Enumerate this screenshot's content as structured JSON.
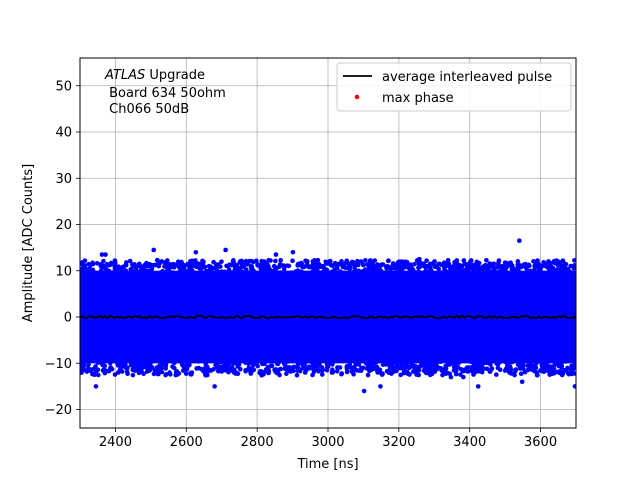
{
  "chart_data": {
    "type": "scatter",
    "xlabel": "Time [ns]",
    "ylabel": "Amplitude [ADC Counts]",
    "xlim": [
      2300,
      3700
    ],
    "ylim": [
      -24,
      56
    ],
    "xticks": [
      2400,
      2600,
      2800,
      3000,
      3200,
      3400,
      3600
    ],
    "yticks": [
      -20,
      -10,
      0,
      10,
      20,
      30,
      40,
      50
    ],
    "xtick_labels": [
      "2400",
      "2600",
      "2800",
      "3000",
      "3200",
      "3400",
      "3600"
    ],
    "ytick_labels": [
      "−20",
      "−10",
      "0",
      "10",
      "20",
      "30",
      "40",
      "50"
    ],
    "grid": true,
    "legend_position": "top-right",
    "annotation": {
      "italic": "ATLAS",
      "line1_rest": " Upgrade",
      "line2": " Board 634 50ohm",
      "line3": " Ch066 50dB"
    },
    "series": [
      {
        "name": "average interleaved pulse",
        "kind": "line",
        "color": "#000000",
        "x": [
          2300,
          3700
        ],
        "y": [
          0,
          0
        ]
      },
      {
        "name": "max phase",
        "kind": "marker",
        "color": "#ff0000",
        "x": [],
        "y": []
      },
      {
        "kind": "scatter",
        "color": "#0000ff",
        "dense_band": {
          "y_min": -10,
          "y_max": 10
        },
        "x": [
          2312,
          2345,
          2362,
          2372,
          2408,
          2417,
          2434,
          2508,
          2550,
          2573,
          2627,
          2680,
          2711,
          2735,
          2752,
          2820,
          2853,
          2901,
          2957,
          3011,
          3059,
          3102,
          3148,
          3208,
          3258,
          3341,
          3347,
          3382,
          3424,
          3468,
          3540,
          3548,
          3587,
          3630,
          3653,
          3697
        ],
        "y": [
          -10.5,
          -15,
          13.5,
          13.5,
          -12,
          -10,
          -11,
          14.5,
          11.5,
          -12,
          14,
          -15,
          14.5,
          -12,
          12,
          12,
          13.5,
          14,
          12,
          -12,
          11.5,
          -16,
          -15,
          12,
          12.5,
          11.5,
          -13,
          -13,
          -15,
          11.5,
          16.5,
          -14,
          11.5,
          -12,
          -12,
          -15
        ]
      }
    ]
  }
}
